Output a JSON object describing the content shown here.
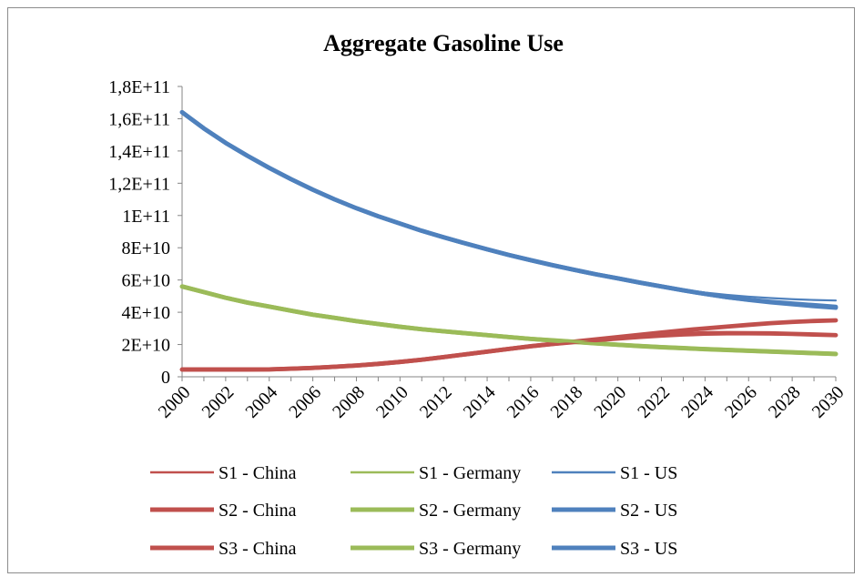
{
  "chart_data": {
    "type": "line",
    "title": "Aggregate Gasoline Use",
    "xlabel": "",
    "ylabel": "",
    "x": [
      2000,
      2001,
      2002,
      2003,
      2004,
      2005,
      2006,
      2007,
      2008,
      2009,
      2010,
      2011,
      2012,
      2013,
      2014,
      2015,
      2016,
      2017,
      2018,
      2019,
      2020,
      2021,
      2022,
      2023,
      2024,
      2025,
      2026,
      2027,
      2028,
      2029,
      2030
    ],
    "x_tick_labels": [
      "2000",
      "2002",
      "2004",
      "2006",
      "2008",
      "2010",
      "2012",
      "2014",
      "2016",
      "2018",
      "2020",
      "2022",
      "2024",
      "2026",
      "2028",
      "2030"
    ],
    "ylim": [
      0,
      180000000000
    ],
    "y_tick_labels": [
      "0",
      "2E+10",
      "4E+10",
      "6E+10",
      "8E+10",
      "1E+11",
      "1,2E+11",
      "1,4E+11",
      "1,6E+11",
      "1,8E+11"
    ],
    "grid": false,
    "legend_position": "bottom",
    "series": [
      {
        "name": "S1 - China",
        "color": "#c0504d",
        "weight": "thin",
        "values": [
          4500000000,
          4500000000,
          4500000000,
          4500000000,
          4600000000,
          5000000000,
          5500000000,
          6200000000,
          7000000000,
          8000000000,
          9200000000,
          10600000000,
          12200000000,
          13900000000,
          15600000000,
          17200000000,
          18700000000,
          20000000000,
          21000000000,
          22000000000,
          23000000000,
          24000000000,
          24800000000,
          25500000000,
          26000000000,
          26200000000,
          26200000000,
          26200000000,
          26000000000,
          25800000000,
          25500000000
        ]
      },
      {
        "name": "S1 - Germany",
        "color": "#9bbb59",
        "weight": "thin",
        "values": [
          56000000000,
          52500000000,
          49000000000,
          46000000000,
          43500000000,
          41000000000,
          38500000000,
          36500000000,
          34500000000,
          32700000000,
          31000000000,
          29500000000,
          28200000000,
          27000000000,
          25800000000,
          24600000000,
          23500000000,
          22500000000,
          21600000000,
          20700000000,
          19800000000,
          19000000000,
          18300000000,
          17700000000,
          17100000000,
          16600000000,
          16100000000,
          15600000000,
          15100000000,
          14600000000,
          14100000000
        ]
      },
      {
        "name": "S1 - US",
        "color": "#4f81bd",
        "weight": "thin",
        "values": [
          164000000000,
          154000000000,
          145000000000,
          137000000000,
          129500000000,
          122500000000,
          116000000000,
          110000000000,
          104500000000,
          99500000000,
          95000000000,
          90500000000,
          86500000000,
          82700000000,
          79000000000,
          75500000000,
          72300000000,
          69200000000,
          66300000000,
          63500000000,
          61000000000,
          58500000000,
          56200000000,
          54000000000,
          52200000000,
          50800000000,
          49700000000,
          48800000000,
          48100000000,
          47600000000,
          47300000000
        ]
      },
      {
        "name": "S2 - China",
        "color": "#c0504d",
        "weight": "thick",
        "values": [
          4500000000,
          4500000000,
          4500000000,
          4500000000,
          4600000000,
          5000000000,
          5500000000,
          6200000000,
          7000000000,
          8000000000,
          9200000000,
          10600000000,
          12200000000,
          13900000000,
          15600000000,
          17300000000,
          18900000000,
          20300000000,
          21500000000,
          22700000000,
          23900000000,
          25000000000,
          25800000000,
          26500000000,
          27000000000,
          27100000000,
          27000000000,
          26900000000,
          26600000000,
          26200000000,
          25800000000
        ]
      },
      {
        "name": "S2 - Germany",
        "color": "#9bbb59",
        "weight": "thick",
        "values": [
          56000000000,
          52500000000,
          49000000000,
          46000000000,
          43500000000,
          41000000000,
          38500000000,
          36500000000,
          34500000000,
          32700000000,
          31000000000,
          29500000000,
          28200000000,
          27000000000,
          25800000000,
          24600000000,
          23500000000,
          22600000000,
          21700000000,
          20800000000,
          19900000000,
          19100000000,
          18400000000,
          17800000000,
          17200000000,
          16700000000,
          16200000000,
          15700000000,
          15200000000,
          14700000000,
          14200000000
        ]
      },
      {
        "name": "S2 - US",
        "color": "#4f81bd",
        "weight": "thick",
        "values": [
          164000000000,
          154000000000,
          145000000000,
          137000000000,
          129500000000,
          122500000000,
          116000000000,
          110000000000,
          104500000000,
          99500000000,
          95000000000,
          90500000000,
          86500000000,
          82700000000,
          79000000000,
          75500000000,
          72300000000,
          69200000000,
          66300000000,
          63500000000,
          61000000000,
          58400000000,
          56000000000,
          53600000000,
          51400000000,
          49400000000,
          47800000000,
          46500000000,
          45400000000,
          44400000000,
          43400000000
        ]
      },
      {
        "name": "S3 - China",
        "color": "#c0504d",
        "weight": "thick",
        "values": [
          4500000000,
          4500000000,
          4500000000,
          4500000000,
          4600000000,
          5000000000,
          5500000000,
          6200000000,
          7000000000,
          8000000000,
          9200000000,
          10600000000,
          12200000000,
          13900000000,
          15600000000,
          17300000000,
          19000000000,
          20400000000,
          21800000000,
          23200000000,
          24600000000,
          26000000000,
          27400000000,
          28800000000,
          30000000000,
          31100000000,
          32200000000,
          33200000000,
          34000000000,
          34600000000,
          35000000000
        ]
      },
      {
        "name": "S3 - Germany",
        "color": "#9bbb59",
        "weight": "thick",
        "values": [
          56000000000,
          52500000000,
          49000000000,
          46000000000,
          43500000000,
          41000000000,
          38500000000,
          36500000000,
          34500000000,
          32700000000,
          31000000000,
          29500000000,
          28200000000,
          27000000000,
          25800000000,
          24600000000,
          23500000000,
          22500000000,
          21600000000,
          20700000000,
          19800000000,
          19000000000,
          18300000000,
          17700000000,
          17100000000,
          16600000000,
          16100000000,
          15600000000,
          15100000000,
          14600000000,
          14100000000
        ]
      },
      {
        "name": "S3 - US",
        "color": "#4f81bd",
        "weight": "thick",
        "values": [
          164000000000,
          154000000000,
          145000000000,
          137000000000,
          129500000000,
          122500000000,
          116000000000,
          110000000000,
          104500000000,
          99500000000,
          95000000000,
          90500000000,
          86500000000,
          82700000000,
          79000000000,
          75500000000,
          72300000000,
          69200000000,
          66300000000,
          63500000000,
          61000000000,
          58400000000,
          56000000000,
          53600000000,
          51400000000,
          49400000000,
          47700000000,
          46200000000,
          45000000000,
          43800000000,
          42800000000
        ]
      }
    ]
  }
}
